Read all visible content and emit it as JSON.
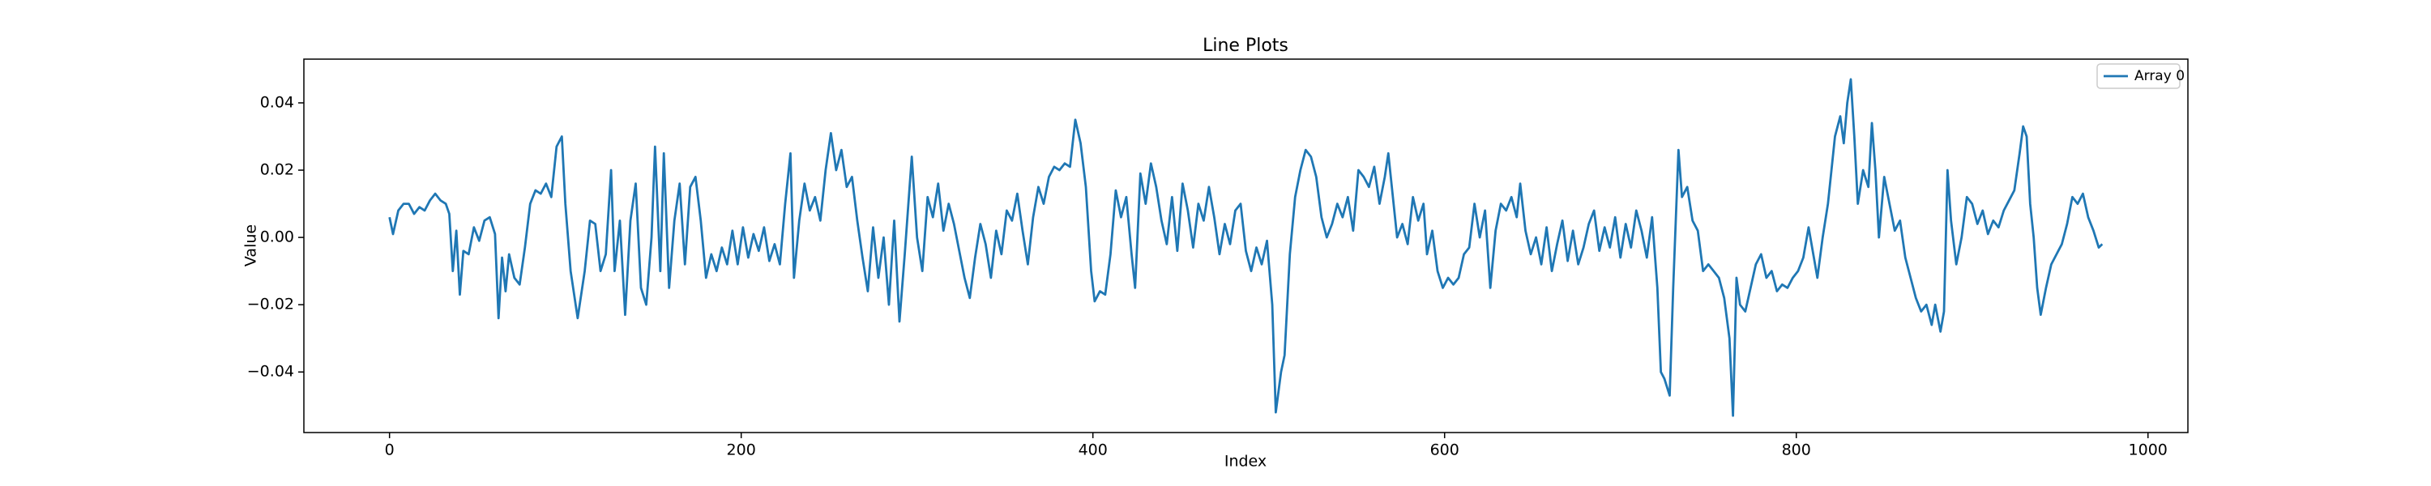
{
  "chart_data": {
    "type": "line",
    "title": "Line Plots",
    "xlabel": "Index",
    "ylabel": "Value",
    "x": [
      0,
      2,
      5,
      8,
      11,
      14,
      17,
      20,
      23,
      26,
      29,
      32,
      34,
      36,
      38,
      40,
      42,
      45,
      48,
      51,
      54,
      57,
      60,
      62,
      64,
      66,
      68,
      71,
      74,
      77,
      80,
      83,
      86,
      89,
      92,
      95,
      98,
      100,
      103,
      107,
      111,
      114,
      117,
      120,
      123,
      126,
      128,
      131,
      134,
      137,
      140,
      143,
      146,
      149,
      151,
      154,
      156,
      159,
      162,
      165,
      168,
      171,
      174,
      177,
      180,
      183,
      186,
      189,
      192,
      195,
      198,
      201,
      204,
      207,
      210,
      213,
      216,
      219,
      222,
      225,
      228,
      230,
      233,
      236,
      239,
      242,
      245,
      248,
      251,
      254,
      257,
      260,
      263,
      266,
      269,
      272,
      275,
      278,
      281,
      284,
      287,
      290,
      293,
      297,
      300,
      303,
      306,
      309,
      312,
      315,
      318,
      321,
      324,
      327,
      330,
      333,
      336,
      339,
      342,
      345,
      348,
      351,
      354,
      357,
      360,
      363,
      366,
      369,
      372,
      375,
      378,
      381,
      384,
      387,
      390,
      393,
      396,
      399,
      401,
      404,
      407,
      410,
      413,
      416,
      419,
      422,
      424,
      427,
      430,
      433,
      436,
      439,
      442,
      445,
      448,
      451,
      454,
      457,
      460,
      463,
      466,
      469,
      472,
      475,
      478,
      481,
      484,
      487,
      490,
      493,
      496,
      499,
      502,
      504,
      507,
      509,
      512,
      515,
      518,
      521,
      524,
      527,
      530,
      533,
      536,
      539,
      542,
      545,
      548,
      551,
      554,
      557,
      560,
      563,
      566,
      568,
      571,
      573,
      576,
      579,
      582,
      585,
      588,
      590,
      593,
      596,
      599,
      602,
      605,
      608,
      611,
      614,
      617,
      620,
      623,
      626,
      629,
      632,
      635,
      638,
      641,
      643,
      646,
      649,
      652,
      655,
      658,
      661,
      664,
      667,
      670,
      673,
      676,
      679,
      682,
      685,
      688,
      691,
      694,
      697,
      700,
      703,
      706,
      709,
      712,
      715,
      718,
      721,
      723,
      725,
      728,
      730,
      733,
      735,
      738,
      741,
      744,
      747,
      750,
      753,
      756,
      759,
      762,
      764,
      766,
      768,
      771,
      774,
      777,
      780,
      783,
      786,
      789,
      792,
      795,
      798,
      801,
      804,
      807,
      810,
      812,
      815,
      818,
      820,
      822,
      825,
      827,
      829,
      831,
      833,
      835,
      838,
      841,
      843,
      845,
      847,
      850,
      853,
      856,
      859,
      862,
      865,
      868,
      871,
      874,
      877,
      879,
      882,
      884,
      886,
      888,
      891,
      894,
      897,
      900,
      903,
      906,
      909,
      912,
      915,
      918,
      921,
      924,
      927,
      929,
      931,
      933,
      935,
      937,
      939,
      942,
      945,
      948,
      951,
      954,
      957,
      960,
      963,
      966,
      969,
      972,
      974
    ],
    "series": [
      {
        "name": "Array 0",
        "color": "#1f77b4",
        "values": [
          0.006,
          0.001,
          0.008,
          0.01,
          0.01,
          0.007,
          0.009,
          0.008,
          0.011,
          0.013,
          0.011,
          0.01,
          0.007,
          -0.01,
          0.002,
          -0.017,
          -0.004,
          -0.005,
          0.003,
          -0.001,
          0.005,
          0.006,
          0.001,
          -0.024,
          -0.006,
          -0.016,
          -0.005,
          -0.012,
          -0.014,
          -0.003,
          0.01,
          0.014,
          0.013,
          0.016,
          0.012,
          0.027,
          0.03,
          0.01,
          -0.01,
          -0.024,
          -0.01,
          0.005,
          0.004,
          -0.01,
          -0.005,
          0.02,
          -0.01,
          0.005,
          -0.023,
          0.005,
          0.016,
          -0.015,
          -0.02,
          0.0,
          0.027,
          -0.01,
          0.025,
          -0.015,
          0.005,
          0.016,
          -0.008,
          0.015,
          0.018,
          0.005,
          -0.012,
          -0.005,
          -0.01,
          -0.003,
          -0.008,
          0.002,
          -0.008,
          0.003,
          -0.006,
          0.001,
          -0.004,
          0.003,
          -0.007,
          -0.002,
          -0.008,
          0.01,
          0.025,
          -0.012,
          0.005,
          0.016,
          0.008,
          0.012,
          0.005,
          0.02,
          0.031,
          0.02,
          0.026,
          0.015,
          0.018,
          0.005,
          -0.006,
          -0.016,
          0.003,
          -0.012,
          0.0,
          -0.02,
          0.005,
          -0.025,
          -0.005,
          0.024,
          0.0,
          -0.01,
          0.012,
          0.006,
          0.016,
          0.002,
          0.01,
          0.004,
          -0.004,
          -0.012,
          -0.018,
          -0.006,
          0.004,
          -0.002,
          -0.012,
          0.002,
          -0.005,
          0.008,
          0.005,
          0.013,
          0.002,
          -0.008,
          0.006,
          0.015,
          0.01,
          0.018,
          0.021,
          0.02,
          0.022,
          0.021,
          0.035,
          0.028,
          0.015,
          -0.01,
          -0.019,
          -0.016,
          -0.017,
          -0.005,
          0.014,
          0.006,
          0.012,
          -0.005,
          -0.015,
          0.019,
          0.01,
          0.022,
          0.015,
          0.005,
          -0.002,
          0.012,
          -0.004,
          0.016,
          0.008,
          -0.003,
          0.01,
          0.005,
          0.015,
          0.006,
          -0.005,
          0.004,
          -0.002,
          0.008,
          0.01,
          -0.004,
          -0.01,
          -0.003,
          -0.008,
          -0.001,
          -0.02,
          -0.052,
          -0.04,
          -0.035,
          -0.005,
          0.012,
          0.02,
          0.026,
          0.024,
          0.018,
          0.006,
          0.0,
          0.004,
          0.01,
          0.006,
          0.012,
          0.002,
          0.02,
          0.018,
          0.015,
          0.021,
          0.01,
          0.018,
          0.025,
          0.01,
          0.0,
          0.004,
          -0.002,
          0.012,
          0.005,
          0.01,
          -0.005,
          0.002,
          -0.01,
          -0.015,
          -0.012,
          -0.014,
          -0.012,
          -0.005,
          -0.003,
          0.01,
          0.0,
          0.008,
          -0.015,
          0.002,
          0.01,
          0.008,
          0.012,
          0.006,
          0.016,
          0.002,
          -0.005,
          0.0,
          -0.008,
          0.003,
          -0.01,
          -0.002,
          0.005,
          -0.007,
          0.002,
          -0.008,
          -0.003,
          0.004,
          0.008,
          -0.004,
          0.003,
          -0.003,
          0.006,
          -0.006,
          0.004,
          -0.003,
          0.008,
          0.002,
          -0.006,
          0.006,
          -0.015,
          -0.04,
          -0.042,
          -0.047,
          -0.015,
          0.026,
          0.012,
          0.015,
          0.005,
          0.002,
          -0.01,
          -0.008,
          -0.01,
          -0.012,
          -0.018,
          -0.03,
          -0.053,
          -0.012,
          -0.02,
          -0.022,
          -0.015,
          -0.008,
          -0.005,
          -0.012,
          -0.01,
          -0.016,
          -0.014,
          -0.015,
          -0.012,
          -0.01,
          -0.006,
          0.003,
          -0.006,
          -0.012,
          0.0,
          0.01,
          0.02,
          0.03,
          0.036,
          0.028,
          0.04,
          0.047,
          0.03,
          0.01,
          0.02,
          0.015,
          0.034,
          0.02,
          0.0,
          0.018,
          0.01,
          0.002,
          0.005,
          -0.006,
          -0.012,
          -0.018,
          -0.022,
          -0.02,
          -0.026,
          -0.02,
          -0.028,
          -0.022,
          0.02,
          0.005,
          -0.008,
          0.0,
          0.012,
          0.01,
          0.004,
          0.008,
          0.001,
          0.005,
          0.003,
          0.008,
          0.011,
          0.014,
          0.025,
          0.033,
          0.03,
          0.01,
          0.0,
          -0.015,
          -0.023,
          -0.015,
          -0.008,
          -0.005,
          -0.002,
          0.004,
          0.012,
          0.01,
          0.013,
          0.006,
          0.002,
          -0.003,
          -0.002
        ]
      }
    ],
    "xlim": [
      -48.7,
      1022.7
    ],
    "xticks": [
      0,
      200,
      400,
      600,
      800,
      1000
    ],
    "ylim": [
      -0.058,
      0.053
    ],
    "yticks": [
      {
        "value": -0.04,
        "label": "−0.04"
      },
      {
        "value": -0.02,
        "label": "−0.02"
      },
      {
        "value": 0,
        "label": "0.00"
      },
      {
        "value": 0.02,
        "label": "0.02"
      },
      {
        "value": 0.04,
        "label": "0.04"
      }
    ],
    "grid": false,
    "legend": "upper right"
  }
}
